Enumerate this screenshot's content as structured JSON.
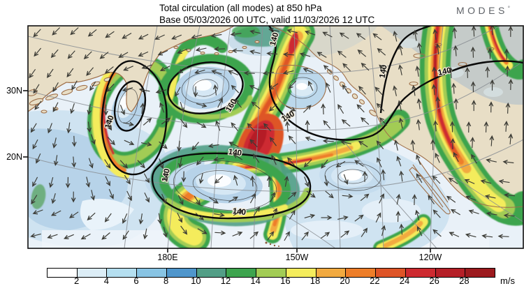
{
  "title": {
    "line1": "Total circulation (all modes) at 850 hPa",
    "line2": "Base 05/03/2026 00 UTC, valid 11/03/2026 12 UTC"
  },
  "brand": {
    "name": "MODES",
    "mark": "°"
  },
  "axes": {
    "lat_ticks": [
      "30N",
      "20N"
    ],
    "lon_ticks": [
      "180E",
      "150W",
      "120W"
    ]
  },
  "colorbar": {
    "tick_labels": [
      "2",
      "4",
      "6",
      "8",
      "10",
      "12",
      "14",
      "16",
      "18",
      "20",
      "22",
      "24",
      "26",
      "28"
    ],
    "unit": "m/s",
    "colors": [
      "#ffffff",
      "#dcedf6",
      "#b5dff0",
      "#88c4e4",
      "#4f96cc",
      "#529e86",
      "#3da44e",
      "#a2cc55",
      "#f4ec5c",
      "#f2aa40",
      "#ee7e29",
      "#de5427",
      "#cd2a30",
      "#b51f27",
      "#9c1a1e"
    ]
  },
  "contour_labels": [
    "140",
    "160",
    "140",
    "140",
    "140",
    "140",
    "140",
    "140",
    "140"
  ],
  "chart_data": {
    "type": "heatmap",
    "title": "Total circulation (all modes) at 850 hPa",
    "subtitle": "Base 05/03/2026 00 UTC, valid 11/03/2026 12 UTC",
    "variable": "wind speed (total circulation, all modes) at 850 hPa with wind vectors",
    "units": "m/s",
    "colorbar_ticks": [
      2,
      4,
      6,
      8,
      10,
      12,
      14,
      16,
      18,
      20,
      22,
      24,
      26,
      28
    ],
    "colorbar_colors": [
      "#ffffff",
      "#dcedf6",
      "#b5dff0",
      "#88c4e4",
      "#4f96cc",
      "#529e86",
      "#3da44e",
      "#a2cc55",
      "#f4ec5c",
      "#f2aa40",
      "#ee7e29",
      "#de5427",
      "#cd2a30",
      "#b51f27",
      "#9c1a1e"
    ],
    "contour_levels_labeled": [
      140,
      160
    ],
    "x_axis": {
      "ticks": [
        "180E",
        "150W",
        "120W"
      ]
    },
    "y_axis": {
      "ticks": [
        "30N",
        "20N"
      ]
    },
    "region": "North Pacific",
    "legend_position": "bottom"
  }
}
